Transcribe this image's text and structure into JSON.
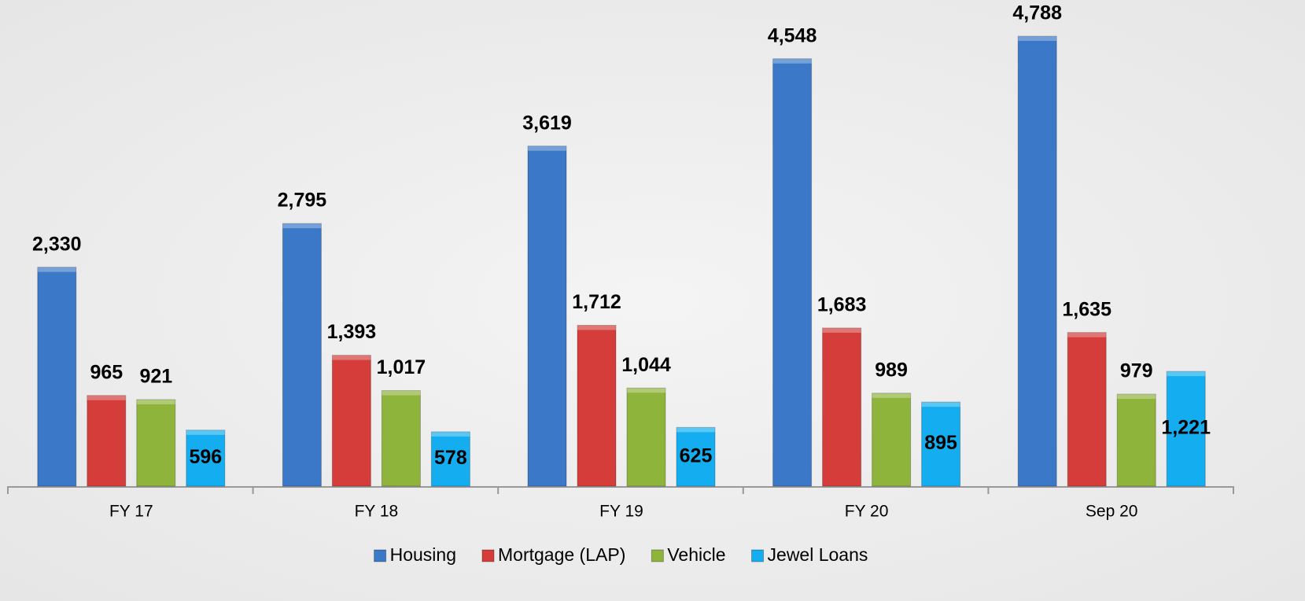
{
  "chart_data": {
    "type": "bar",
    "categories": [
      "FY 17",
      "FY 18",
      "FY 19",
      "FY 20",
      "Sep 20"
    ],
    "series": [
      {
        "name": "Housing",
        "color": "#3b78c8",
        "values": [
          2330,
          2795,
          3619,
          4548,
          4788
        ],
        "value_labels": [
          "2,330",
          "2,795",
          "3,619",
          "4,548",
          "4,788"
        ]
      },
      {
        "name": "Mortgage (LAP)",
        "color": "#d43d3a",
        "values": [
          965,
          1393,
          1712,
          1683,
          1635
        ],
        "value_labels": [
          "965",
          "1,393",
          "1,712",
          "1,683",
          "1,635"
        ]
      },
      {
        "name": "Vehicle",
        "color": "#8fb43c",
        "values": [
          921,
          1017,
          1044,
          989,
          979
        ],
        "value_labels": [
          "921",
          "1,017",
          "1,044",
          "989",
          "979"
        ]
      },
      {
        "name": "Jewel Loans",
        "color": "#14aef0",
        "values": [
          596,
          578,
          625,
          895,
          1221
        ],
        "value_labels": [
          "596",
          "578",
          "625",
          "895",
          "1,221"
        ]
      }
    ],
    "ylim": [
      0,
      4800
    ],
    "legend": "bottom"
  }
}
